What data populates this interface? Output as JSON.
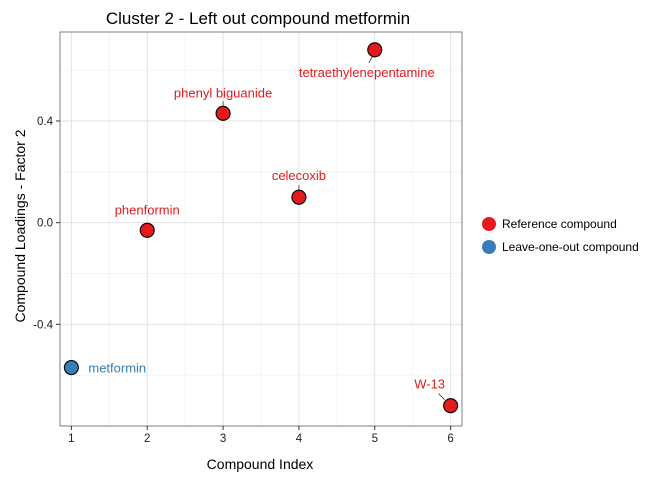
{
  "chart_data": {
    "type": "scatter",
    "title": "Cluster 2 - Left out compound metformin",
    "xlabel": "Compound Index",
    "ylabel": "Compound Loadings - Factor 2",
    "xlim": [
      0.85,
      6.15
    ],
    "ylim": [
      -0.8,
      0.75
    ],
    "x_ticks": [
      1,
      2,
      3,
      4,
      5,
      6
    ],
    "y_ticks": [
      -0.4,
      0.0,
      0.4
    ],
    "y_tick_labels": [
      "-0.4",
      "0.0",
      "0.4"
    ],
    "grid": true,
    "legend_position": "right",
    "series": [
      {
        "name": "Reference compound",
        "color": "#e41a1c",
        "points": [
          {
            "x": 2,
            "y": -0.03,
            "label": "phenformin"
          },
          {
            "x": 3,
            "y": 0.43,
            "label": "phenyl biguanide"
          },
          {
            "x": 4,
            "y": 0.1,
            "label": "celecoxib"
          },
          {
            "x": 5,
            "y": 0.68,
            "label": "tetraethylenepentamine"
          },
          {
            "x": 6,
            "y": -0.72,
            "label": "W-13"
          }
        ]
      },
      {
        "name": "Leave-one-out compound",
        "color": "#377eb8",
        "points": [
          {
            "x": 1,
            "y": -0.57,
            "label": "metformin"
          }
        ]
      }
    ]
  }
}
